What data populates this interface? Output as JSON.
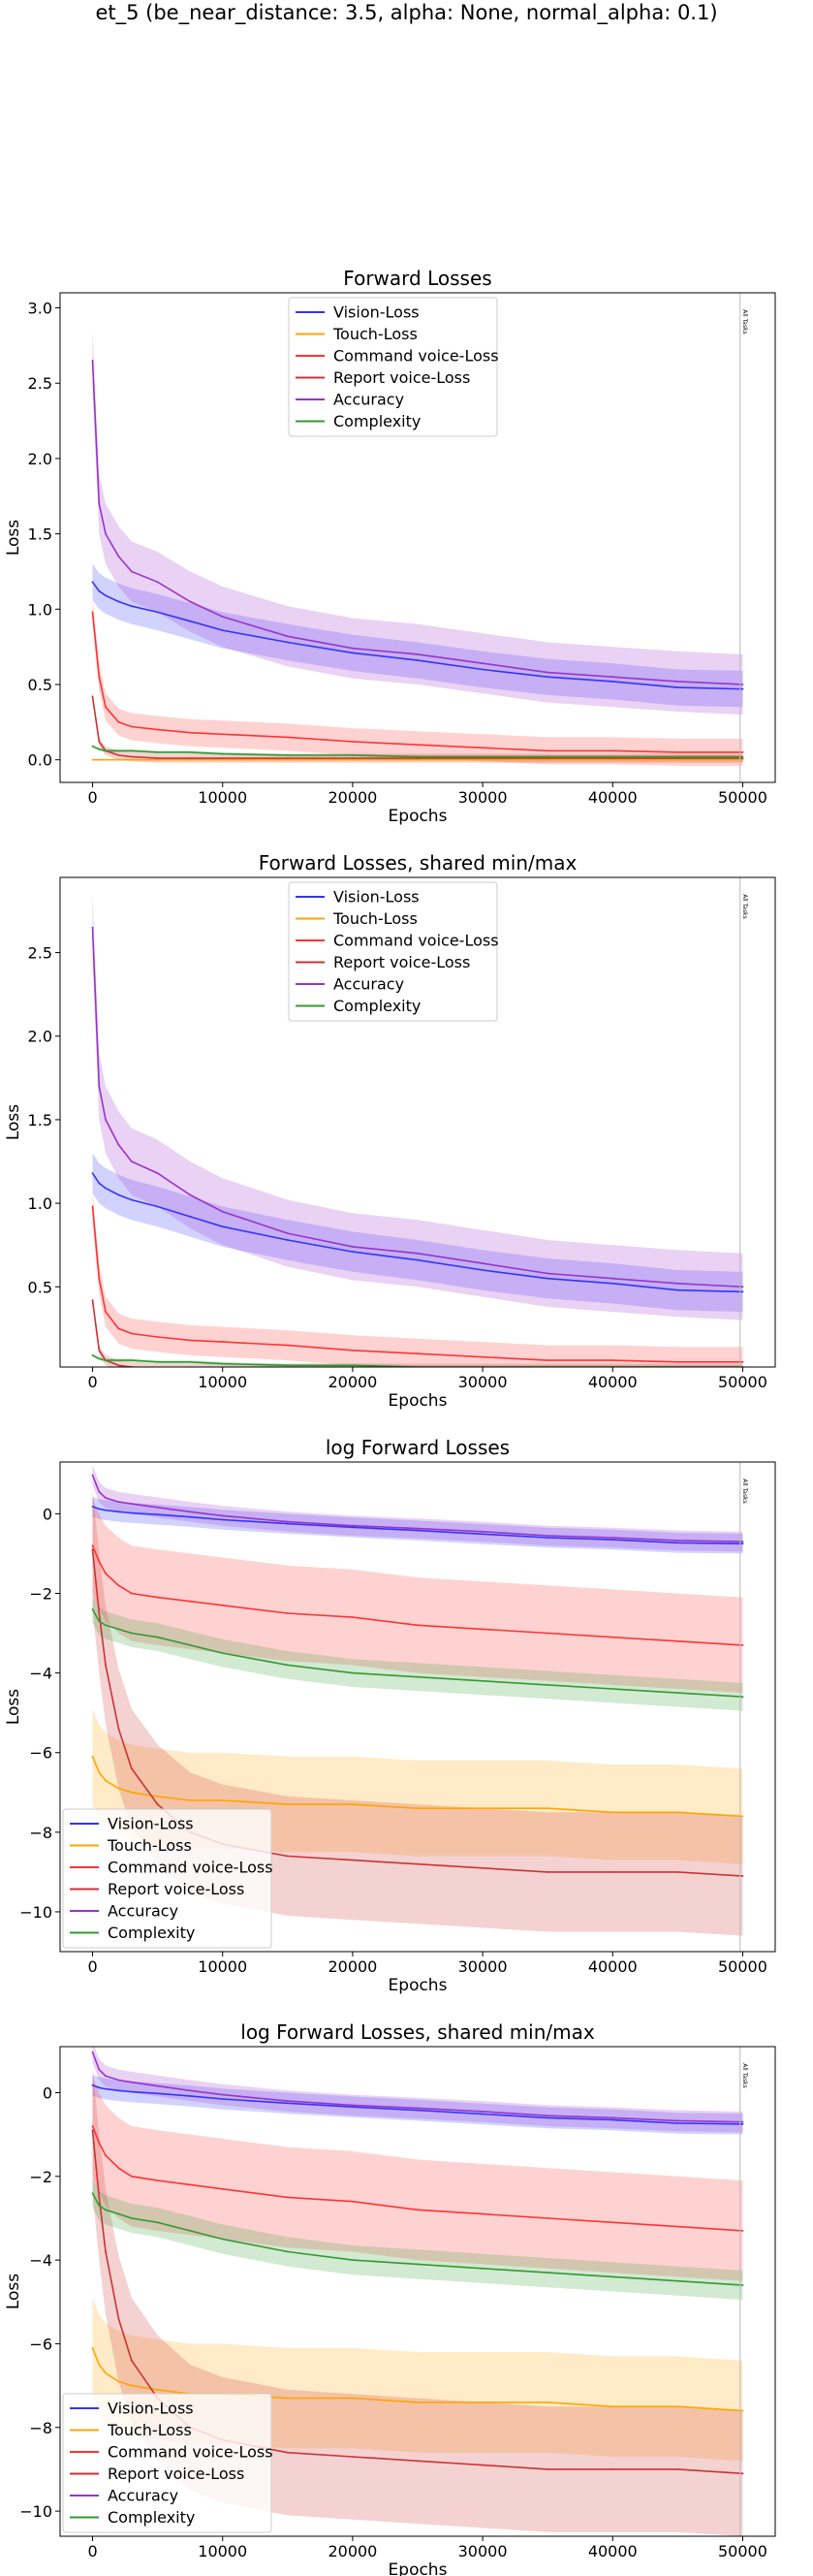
{
  "suptitle": "et_5 (be_near_distance: 3.5, alpha: None, normal_alpha: 0.1)",
  "colors": {
    "vision": "#3333ff",
    "touch": "#ffa500",
    "command": "#ff3333",
    "report": "#cc3333",
    "accuracy": "#9933cc",
    "complexity": "#339933"
  },
  "chart_data": [
    {
      "type": "line",
      "title": "Forward Losses",
      "xlabel": "Epochs",
      "ylabel": "Loss",
      "xlim": [
        -2500,
        52500
      ],
      "ylim": [
        -0.15,
        3.1
      ],
      "xticks": [
        0,
        10000,
        20000,
        30000,
        40000,
        50000
      ],
      "yticks": [
        0.0,
        0.5,
        1.0,
        1.5,
        2.0,
        2.5,
        3.0
      ],
      "ytick_labels": [
        "0.0",
        "0.5",
        "1.0",
        "1.5",
        "2.0",
        "2.5",
        "3.0"
      ],
      "vline": {
        "x": 49800,
        "label": "All Tasks"
      },
      "legend": "upper center",
      "grid": false,
      "x": [
        0,
        500,
        1000,
        2000,
        3000,
        5000,
        7500,
        10000,
        15000,
        20000,
        25000,
        30000,
        35000,
        40000,
        45000,
        50000
      ],
      "series": [
        {
          "name": "Vision-Loss",
          "color": "#3333ff",
          "values": [
            1.18,
            1.12,
            1.09,
            1.05,
            1.02,
            0.98,
            0.92,
            0.86,
            0.78,
            0.71,
            0.66,
            0.6,
            0.55,
            0.52,
            0.48,
            0.47
          ],
          "band": 0.12
        },
        {
          "name": "Touch-Loss",
          "color": "#ffa500",
          "values": [
            0.0,
            0.0,
            0.0,
            0.0,
            0.0,
            0.0,
            0.0,
            0.0,
            0.0,
            0.0,
            0.0,
            0.0,
            0.0,
            0.0,
            0.0,
            0.0
          ],
          "band": 0.0
        },
        {
          "name": "Command voice-Loss",
          "color": "#ff3333",
          "values": [
            0.98,
            0.55,
            0.35,
            0.25,
            0.22,
            0.2,
            0.18,
            0.17,
            0.15,
            0.12,
            0.1,
            0.08,
            0.06,
            0.06,
            0.05,
            0.05
          ],
          "band": 0.09
        },
        {
          "name": "Report voice-Loss",
          "color": "#cc3333",
          "values": [
            0.42,
            0.12,
            0.06,
            0.03,
            0.02,
            0.01,
            0.01,
            0.01,
            0.01,
            0.01,
            0.01,
            0.01,
            0.01,
            0.01,
            0.01,
            0.01
          ],
          "band": 0.03
        },
        {
          "name": "Accuracy",
          "color": "#9933cc",
          "values": [
            2.65,
            1.7,
            1.5,
            1.35,
            1.25,
            1.18,
            1.05,
            0.95,
            0.82,
            0.74,
            0.7,
            0.64,
            0.58,
            0.55,
            0.52,
            0.5
          ],
          "band": 0.2
        },
        {
          "name": "Complexity",
          "color": "#339933",
          "values": [
            0.09,
            0.07,
            0.06,
            0.06,
            0.06,
            0.05,
            0.05,
            0.04,
            0.03,
            0.03,
            0.02,
            0.02,
            0.02,
            0.02,
            0.02,
            0.02
          ],
          "band": 0.01
        }
      ]
    },
    {
      "type": "line",
      "title": "Forward Losses, shared min/max",
      "xlabel": "Epochs",
      "ylabel": "Loss",
      "xlim": [
        -2500,
        52500
      ],
      "ylim": [
        0.02,
        2.95
      ],
      "xticks": [
        0,
        10000,
        20000,
        30000,
        40000,
        50000
      ],
      "yticks": [
        0.5,
        1.0,
        1.5,
        2.0,
        2.5
      ],
      "ytick_labels": [
        "0.5",
        "1.0",
        "1.5",
        "2.0",
        "2.5"
      ],
      "vline": {
        "x": 49800,
        "label": "All Tasks"
      },
      "legend": "upper center",
      "grid": false,
      "x": [
        0,
        500,
        1000,
        2000,
        3000,
        5000,
        7500,
        10000,
        15000,
        20000,
        25000,
        30000,
        35000,
        40000,
        45000,
        50000
      ],
      "series": [
        {
          "name": "Vision-Loss",
          "color": "#3333ff",
          "values": [
            1.18,
            1.12,
            1.09,
            1.05,
            1.02,
            0.98,
            0.92,
            0.86,
            0.78,
            0.71,
            0.66,
            0.6,
            0.55,
            0.52,
            0.48,
            0.47
          ],
          "band": 0.12
        },
        {
          "name": "Touch-Loss",
          "color": "#ffa500",
          "values": [
            0.0,
            0.0,
            0.0,
            0.0,
            0.0,
            0.0,
            0.0,
            0.0,
            0.0,
            0.0,
            0.0,
            0.0,
            0.0,
            0.0,
            0.0,
            0.0
          ],
          "band": 0.0
        },
        {
          "name": "Command voice-Loss",
          "color": "#ff3333",
          "values": [
            0.98,
            0.55,
            0.35,
            0.25,
            0.22,
            0.2,
            0.18,
            0.17,
            0.15,
            0.12,
            0.1,
            0.08,
            0.06,
            0.06,
            0.05,
            0.05
          ],
          "band": 0.09
        },
        {
          "name": "Report voice-Loss",
          "color": "#cc3333",
          "values": [
            0.42,
            0.12,
            0.06,
            0.03,
            0.02,
            0.01,
            0.01,
            0.01,
            0.01,
            0.01,
            0.01,
            0.01,
            0.01,
            0.01,
            0.01,
            0.01
          ],
          "band": 0.03
        },
        {
          "name": "Accuracy",
          "color": "#9933cc",
          "values": [
            2.65,
            1.7,
            1.5,
            1.35,
            1.25,
            1.18,
            1.05,
            0.95,
            0.82,
            0.74,
            0.7,
            0.64,
            0.58,
            0.55,
            0.52,
            0.5
          ],
          "band": 0.2
        },
        {
          "name": "Complexity",
          "color": "#339933",
          "values": [
            0.09,
            0.07,
            0.06,
            0.06,
            0.06,
            0.05,
            0.05,
            0.04,
            0.03,
            0.03,
            0.02,
            0.02,
            0.02,
            0.02,
            0.02,
            0.02
          ],
          "band": 0.01
        }
      ]
    },
    {
      "type": "line",
      "title": "log Forward Losses",
      "xlabel": "Epochs",
      "ylabel": "Loss",
      "xlim": [
        -2500,
        52500
      ],
      "ylim": [
        -11,
        1.3
      ],
      "xticks": [
        0,
        10000,
        20000,
        30000,
        40000,
        50000
      ],
      "yticks": [
        -10,
        -8,
        -6,
        -4,
        -2,
        0
      ],
      "ytick_labels": [
        "−10",
        "−8",
        "−6",
        "−4",
        "−2",
        "0"
      ],
      "vline": {
        "x": 49800,
        "label": "All Tasks"
      },
      "legend": "lower left",
      "grid": false,
      "x": [
        0,
        500,
        1000,
        2000,
        3000,
        5000,
        7500,
        10000,
        15000,
        20000,
        25000,
        30000,
        35000,
        40000,
        45000,
        50000
      ],
      "series": [
        {
          "name": "Vision-Loss",
          "color": "#3333ff",
          "values": [
            0.18,
            0.12,
            0.09,
            0.05,
            0.02,
            -0.02,
            -0.08,
            -0.15,
            -0.25,
            -0.34,
            -0.42,
            -0.51,
            -0.6,
            -0.65,
            -0.73,
            -0.75
          ],
          "band": 0.25
        },
        {
          "name": "Touch-Loss",
          "color": "#ffa500",
          "values": [
            -6.1,
            -6.5,
            -6.7,
            -6.9,
            -7.0,
            -7.1,
            -7.2,
            -7.2,
            -7.3,
            -7.3,
            -7.4,
            -7.4,
            -7.4,
            -7.5,
            -7.5,
            -7.6
          ],
          "band": 1.2
        },
        {
          "name": "Command voice-Loss",
          "color": "#ff3333",
          "values": [
            -0.8,
            -1.2,
            -1.5,
            -1.8,
            -2.0,
            -2.1,
            -2.2,
            -2.3,
            -2.5,
            -2.6,
            -2.8,
            -2.9,
            -3.0,
            -3.1,
            -3.2,
            -3.3
          ],
          "band": 1.2
        },
        {
          "name": "Report voice-Loss",
          "color": "#cc3333",
          "values": [
            -0.9,
            -2.5,
            -3.8,
            -5.4,
            -6.4,
            -7.3,
            -8.0,
            -8.3,
            -8.6,
            -8.7,
            -8.8,
            -8.9,
            -9.0,
            -9.0,
            -9.0,
            -9.1
          ],
          "band": 1.5
        },
        {
          "name": "Accuracy",
          "color": "#9933cc",
          "values": [
            0.97,
            0.55,
            0.4,
            0.3,
            0.25,
            0.16,
            0.05,
            -0.05,
            -0.2,
            -0.3,
            -0.37,
            -0.45,
            -0.55,
            -0.6,
            -0.67,
            -0.7
          ],
          "band": 0.25
        },
        {
          "name": "Complexity",
          "color": "#339933",
          "values": [
            -2.4,
            -2.7,
            -2.8,
            -2.9,
            -3.0,
            -3.1,
            -3.3,
            -3.5,
            -3.8,
            -4.0,
            -4.1,
            -4.2,
            -4.3,
            -4.4,
            -4.5,
            -4.6
          ],
          "band": 0.35
        }
      ]
    },
    {
      "type": "line",
      "title": "log Forward Losses, shared min/max",
      "xlabel": "Epochs",
      "ylabel": "Loss",
      "xlim": [
        -2500,
        52500
      ],
      "ylim": [
        -10.6,
        1.1
      ],
      "xticks": [
        0,
        10000,
        20000,
        30000,
        40000,
        50000
      ],
      "yticks": [
        -10,
        -8,
        -6,
        -4,
        -2,
        0
      ],
      "ytick_labels": [
        "−10",
        "−8",
        "−6",
        "−4",
        "−2",
        "0"
      ],
      "vline": {
        "x": 49800,
        "label": "All Tasks"
      },
      "legend": "lower left",
      "grid": false,
      "x": [
        0,
        500,
        1000,
        2000,
        3000,
        5000,
        7500,
        10000,
        15000,
        20000,
        25000,
        30000,
        35000,
        40000,
        45000,
        50000
      ],
      "series": [
        {
          "name": "Vision-Loss",
          "color": "#3333ff",
          "values": [
            0.18,
            0.12,
            0.09,
            0.05,
            0.02,
            -0.02,
            -0.08,
            -0.15,
            -0.25,
            -0.34,
            -0.42,
            -0.51,
            -0.6,
            -0.65,
            -0.73,
            -0.75
          ],
          "band": 0.25
        },
        {
          "name": "Touch-Loss",
          "color": "#ffa500",
          "values": [
            -6.1,
            -6.5,
            -6.7,
            -6.9,
            -7.0,
            -7.1,
            -7.2,
            -7.2,
            -7.3,
            -7.3,
            -7.4,
            -7.4,
            -7.4,
            -7.5,
            -7.5,
            -7.6
          ],
          "band": 1.2
        },
        {
          "name": "Command voice-Loss",
          "color": "#ff3333",
          "values": [
            -0.8,
            -1.2,
            -1.5,
            -1.8,
            -2.0,
            -2.1,
            -2.2,
            -2.3,
            -2.5,
            -2.6,
            -2.8,
            -2.9,
            -3.0,
            -3.1,
            -3.2,
            -3.3
          ],
          "band": 1.2
        },
        {
          "name": "Report voice-Loss",
          "color": "#cc3333",
          "values": [
            -0.9,
            -2.5,
            -3.8,
            -5.4,
            -6.4,
            -7.3,
            -8.0,
            -8.3,
            -8.6,
            -8.7,
            -8.8,
            -8.9,
            -9.0,
            -9.0,
            -9.0,
            -9.1
          ],
          "band": 1.5
        },
        {
          "name": "Accuracy",
          "color": "#9933cc",
          "values": [
            0.97,
            0.55,
            0.4,
            0.3,
            0.25,
            0.16,
            0.05,
            -0.05,
            -0.2,
            -0.3,
            -0.37,
            -0.45,
            -0.55,
            -0.6,
            -0.67,
            -0.7
          ],
          "band": 0.25
        },
        {
          "name": "Complexity",
          "color": "#339933",
          "values": [
            -2.4,
            -2.7,
            -2.8,
            -2.9,
            -3.0,
            -3.1,
            -3.3,
            -3.5,
            -3.8,
            -4.0,
            -4.1,
            -4.2,
            -4.3,
            -4.4,
            -4.5,
            -4.6
          ],
          "band": 0.35
        }
      ]
    }
  ]
}
